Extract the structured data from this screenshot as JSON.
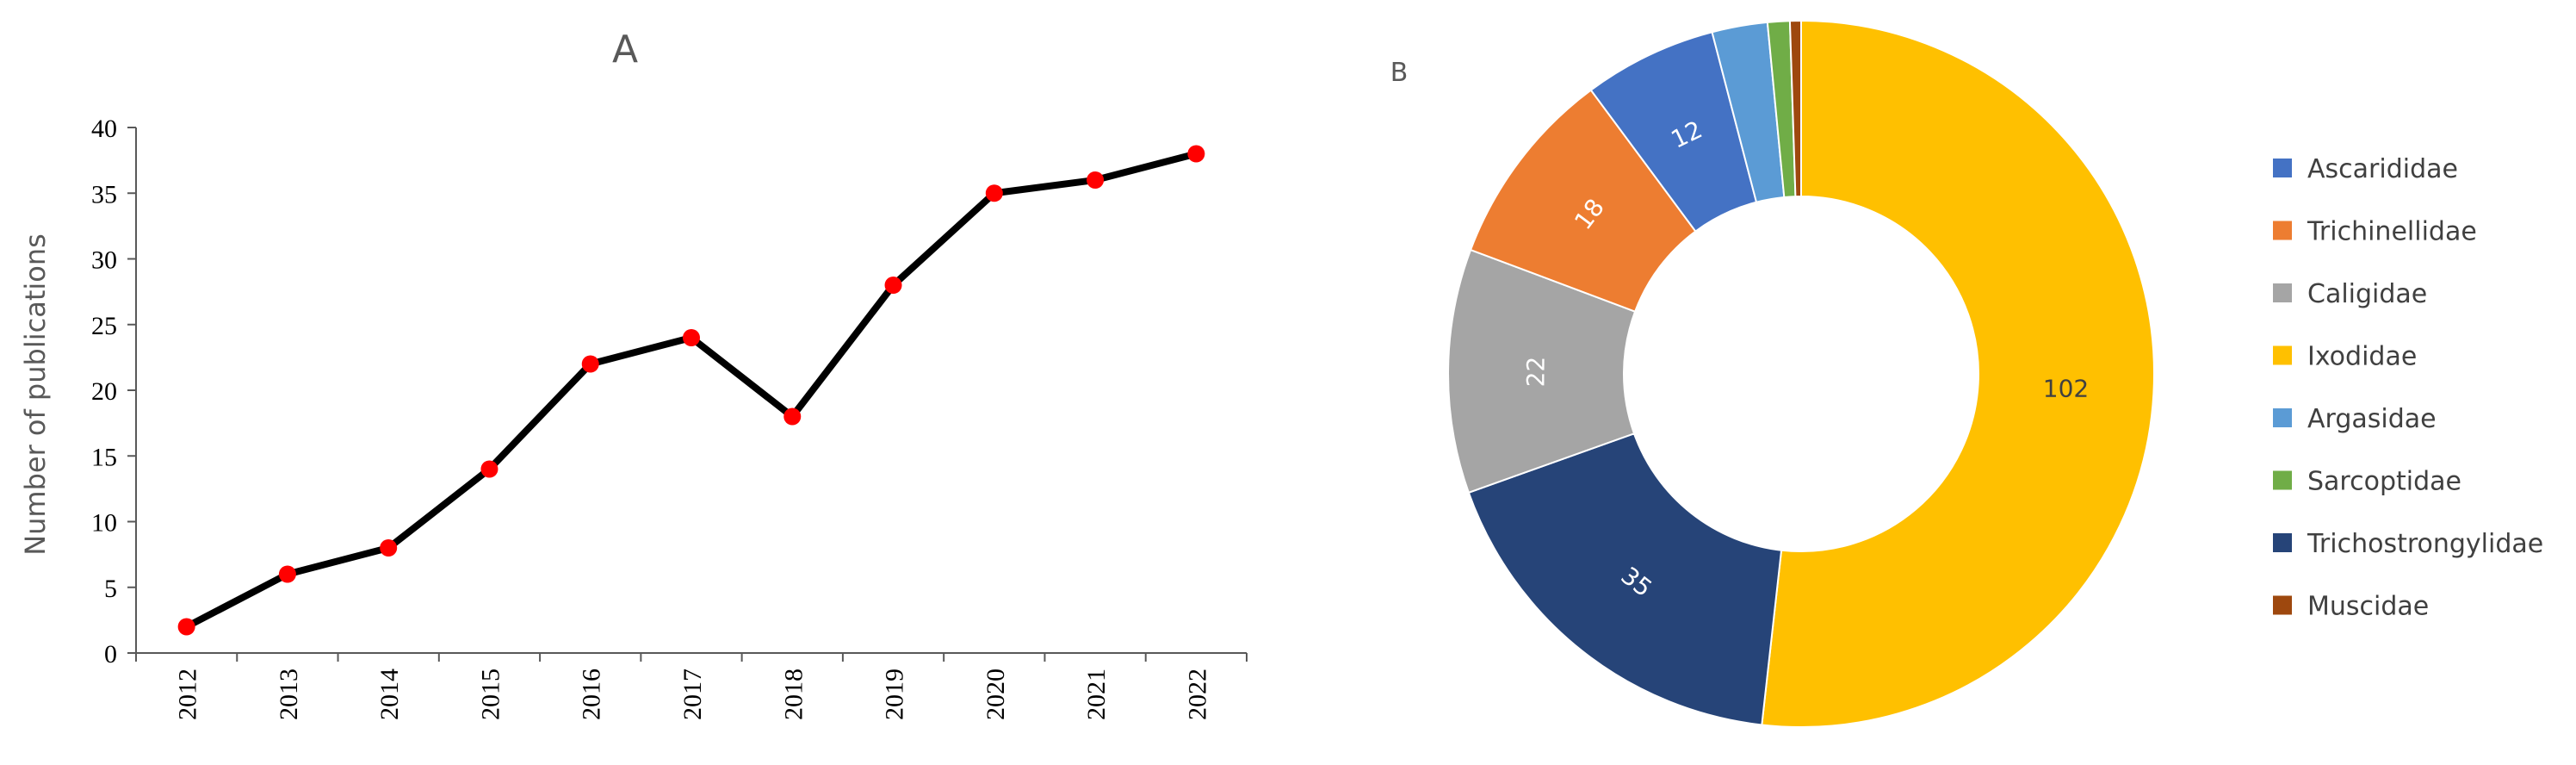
{
  "chart_data": [
    {
      "type": "line",
      "title": "A",
      "xlabel": "",
      "ylabel": "Number of publications",
      "x": [
        "2012",
        "2013",
        "2014",
        "2015",
        "2016",
        "2017",
        "2018",
        "2019",
        "2020",
        "2021",
        "2022"
      ],
      "series": [
        {
          "values": [
            2,
            6,
            8,
            14,
            22,
            24,
            18,
            28,
            35,
            36,
            38
          ]
        }
      ],
      "yticks": [
        "0",
        "5",
        "10",
        "15",
        "20",
        "25",
        "30",
        "35",
        "40"
      ],
      "ylim": [
        0,
        40
      ],
      "grid": false,
      "colors": {
        "line": "#000000",
        "marker": "#ff0000"
      }
    },
    {
      "type": "pie",
      "variant": "doughnut",
      "title": "B",
      "categories": [
        "Ascarididae",
        "Trichinellidae",
        "Caligidae",
        "Ixodidae",
        "Argasidae",
        "Sarcoptidae",
        "Trichostrongylidae",
        "Muscidae"
      ],
      "values": [
        12,
        18,
        22,
        102,
        5,
        2,
        35,
        1
      ],
      "data_labels": [
        "12",
        "18",
        "22",
        "102",
        "",
        "",
        "35",
        ""
      ],
      "draw_order": [
        "Ixodidae",
        "Trichostrongylidae",
        "Caligidae",
        "Trichinellidae",
        "Ascarididae",
        "Argasidae",
        "Sarcoptidae",
        "Muscidae"
      ],
      "colors": [
        "#4472c4",
        "#ed7d31",
        "#a5a5a5",
        "#ffc000",
        "#5b9bd5",
        "#70ad47",
        "#264478",
        "#9e480e"
      ],
      "label_colors": [
        "#ffffff",
        "#ffffff",
        "#ffffff",
        "#404040",
        "#ffffff",
        "#ffffff",
        "#ffffff",
        "#ffffff"
      ],
      "legend_position": "right"
    }
  ]
}
